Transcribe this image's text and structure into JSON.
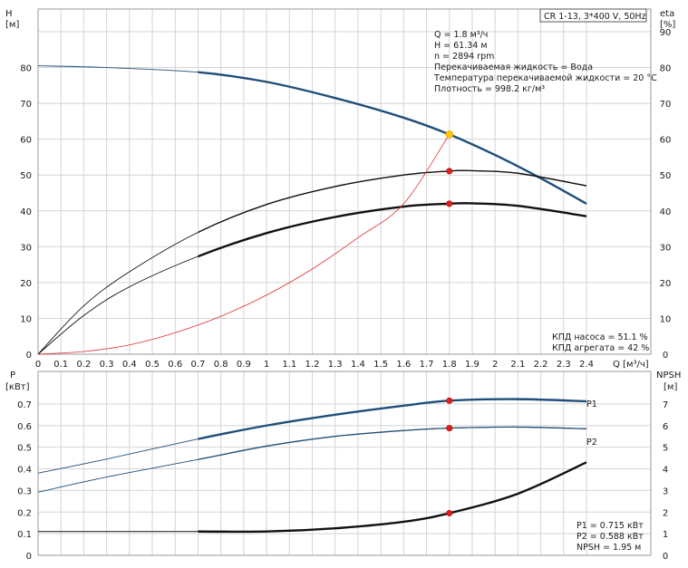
{
  "chart_data": [
    {
      "type": "line",
      "title_box": "CR 1-13, 3*400 V, 50Hz",
      "xlabel": "Q [м³/ч]",
      "ylabel_left": [
        "H",
        "[м]"
      ],
      "ylabel_right": [
        "eta",
        "[%]"
      ],
      "xlim": [
        0,
        2.4
      ],
      "xticks": [
        "0",
        "0.1",
        "0.2",
        "0.3",
        "0.4",
        "0.5",
        "0.6",
        "0.7",
        "0.8",
        "0.9",
        "1",
        "1.1",
        "1.2",
        "1.3",
        "1.4",
        "1.5",
        "1.6",
        "1.7",
        "1.8",
        "1.9",
        "2",
        "2.1",
        "2.2",
        "2.3",
        "2.4"
      ],
      "ylim": [
        0,
        90
      ],
      "yticks": [
        "0",
        "10",
        "20",
        "30",
        "40",
        "50",
        "60",
        "70",
        "80"
      ],
      "yticks_right": [
        "0",
        "10",
        "20",
        "30",
        "40",
        "50",
        "60",
        "70",
        "80",
        "90"
      ],
      "grid": true,
      "info_lines": [
        "Q = 1.8 м³/ч",
        "H = 61.34 м",
        "n = 2894 rpm",
        "Перекачиваемая жидкость = Вода",
        "Температура перекачиваемой жидкости = 20 °C",
        "Плотность = 998.2 кг/м³"
      ],
      "eff_lines": [
        "КПД насоса = 51.1 %",
        "КПД агрегата = 42 %"
      ],
      "series": [
        {
          "key": "head",
          "color": "#1f4e79",
          "x": [
            0,
            0.3,
            0.7,
            1.0,
            1.3,
            1.6,
            1.8,
            2.0,
            2.2,
            2.4
          ],
          "values": [
            80.5,
            80.0,
            78.7,
            76.0,
            71.5,
            66.0,
            61.34,
            55.6,
            49.1,
            42.0
          ]
        },
        {
          "key": "eta_pump",
          "color": "#111111",
          "x": [
            0,
            0.2,
            0.4,
            0.7,
            1.0,
            1.3,
            1.6,
            1.8,
            1.9,
            2.1,
            2.4
          ],
          "values": [
            0,
            13.5,
            23.0,
            34.0,
            41.8,
            46.8,
            50.0,
            51.1,
            51.2,
            50.5,
            47.0
          ]
        },
        {
          "key": "eta_unit",
          "color": "#111111",
          "x": [
            0,
            0.2,
            0.4,
            0.7,
            1.0,
            1.3,
            1.6,
            1.8,
            1.9,
            2.1,
            2.4
          ],
          "values": [
            0,
            10.8,
            18.8,
            27.3,
            33.8,
            38.3,
            41.2,
            42.0,
            42.1,
            41.4,
            38.5
          ]
        },
        {
          "key": "system",
          "color": "#e03030",
          "x": [
            0,
            0.2,
            0.4,
            0.6,
            0.8,
            1.0,
            1.2,
            1.4,
            1.6,
            1.8
          ],
          "values": [
            0,
            0.75,
            2.6,
            6.0,
            10.6,
            16.5,
            23.8,
            32.5,
            42.0,
            61.34
          ]
        }
      ],
      "markers": [
        {
          "x": 1.8,
          "y": 61.34,
          "color": "#ffc800"
        },
        {
          "x": 1.8,
          "y": 51.1,
          "color": "#e02020"
        },
        {
          "x": 1.8,
          "y": 42.0,
          "color": "#e02020"
        }
      ]
    },
    {
      "type": "line",
      "ylabel_left": [
        "P",
        "[кВт]"
      ],
      "ylabel_right": [
        "NPSH",
        "[м]"
      ],
      "xlim": [
        0,
        2.4
      ],
      "ylim": [
        0,
        0.8
      ],
      "yticks": [
        "0",
        "0.1",
        "0.2",
        "0.3",
        "0.4",
        "0.5",
        "0.6",
        "0.7"
      ],
      "ylim_right": [
        0,
        8
      ],
      "yticks_right": [
        "0",
        "1",
        "2",
        "3",
        "4",
        "5",
        "6",
        "7"
      ],
      "grid": true,
      "info_lines": [
        "P1 = 0.715 кВт",
        "P2 = 0.588 кВт",
        "NPSH = 1.95 м"
      ],
      "series": [
        {
          "key": "P1",
          "name": "P1",
          "color": "#1f4e79",
          "x": [
            0,
            0.3,
            0.7,
            1.0,
            1.3,
            1.6,
            1.8,
            2.1,
            2.4
          ],
          "values": [
            0.38,
            0.445,
            0.538,
            0.6,
            0.65,
            0.692,
            0.715,
            0.722,
            0.712
          ]
        },
        {
          "key": "P2",
          "name": "P2",
          "color": "#1f4e79",
          "x": [
            0,
            0.3,
            0.7,
            1.0,
            1.3,
            1.6,
            1.8,
            2.1,
            2.4
          ],
          "values": [
            0.292,
            0.362,
            0.443,
            0.505,
            0.55,
            0.577,
            0.588,
            0.593,
            0.585
          ]
        },
        {
          "key": "NPSH",
          "color": "#111111",
          "axis": "right",
          "x": [
            0,
            0.3,
            0.7,
            1.0,
            1.3,
            1.6,
            1.8,
            2.1,
            2.4
          ],
          "values": [
            1.1,
            1.1,
            1.1,
            1.1,
            1.25,
            1.55,
            1.95,
            2.85,
            4.3
          ]
        }
      ],
      "markers": [
        {
          "x": 1.8,
          "y": 0.715,
          "color": "#e02020"
        },
        {
          "x": 1.8,
          "y": 0.588,
          "color": "#e02020"
        },
        {
          "x": 1.8,
          "y": 1.95,
          "axis": "right",
          "color": "#e02020"
        }
      ]
    }
  ]
}
